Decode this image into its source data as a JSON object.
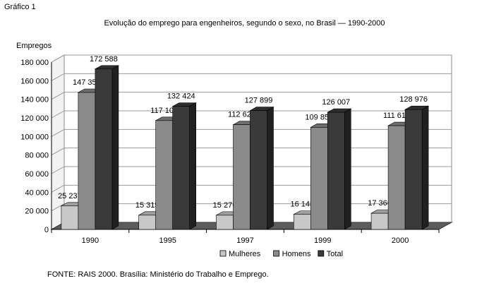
{
  "figure_label": "Gráfico 1",
  "source_note": "FONTE: RAIS 2000. Brasília: Ministério do Trabalho e Emprego.",
  "chart_data": {
    "type": "bar",
    "title": "Evolução do emprego para engenheiros, segundo o sexo, no Brasil — 1990-2000",
    "ylabel": "Empregos",
    "xlabel": "",
    "categories": [
      "1990",
      "1995",
      "1997",
      "1999",
      "2000"
    ],
    "ylim": [
      0,
      180000
    ],
    "yticks": [
      0,
      20000,
      40000,
      60000,
      80000,
      100000,
      120000,
      140000,
      160000,
      180000
    ],
    "ytick_labels": [
      "0",
      "20 000",
      "40 000",
      "60 000",
      "80 000",
      "100 000",
      "120 000",
      "140 000",
      "160 000",
      "180 000"
    ],
    "grid": true,
    "three_d": true,
    "legend_position": "bottom",
    "series": [
      {
        "name": "Mulheres",
        "color": "#c8c8c8",
        "values": [
          25237,
          15315,
          15276,
          16148,
          17366
        ],
        "labels": [
          "25 237",
          "15 315",
          "15 276",
          "16 148",
          "17 366"
        ]
      },
      {
        "name": "Homens",
        "color": "#8a8a8a",
        "values": [
          147351,
          117109,
          112623,
          109859,
          111610
        ],
        "labels": [
          "147 351",
          "117 109",
          "112 623",
          "109 859",
          "111 610"
        ]
      },
      {
        "name": "Total",
        "color": "#3a3a3a",
        "values": [
          172588,
          132424,
          127899,
          126007,
          128976
        ],
        "labels": [
          "172 588",
          "132 424",
          "127 899",
          "126 007",
          "128 976"
        ]
      }
    ]
  }
}
